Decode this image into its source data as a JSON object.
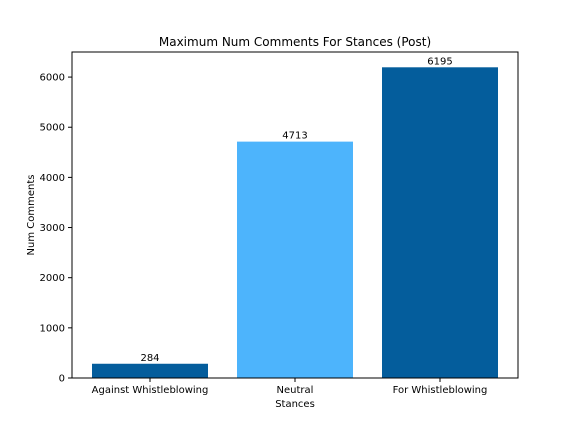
{
  "chart_data": {
    "type": "bar",
    "title": "Maximum Num Comments For Stances (Post)",
    "xlabel": "Stances",
    "ylabel": "Num Comments",
    "categories": [
      "Against Whistleblowing",
      "Neutral",
      "For Whistleblowing"
    ],
    "values": [
      284,
      4713,
      6195
    ],
    "data_labels": [
      "284",
      "4713",
      "6195"
    ],
    "bar_colors": [
      "#045d9c",
      "#4db4fc",
      "#045d9c"
    ],
    "ylim": [
      0,
      6500
    ],
    "yticks": [
      0,
      1000,
      2000,
      3000,
      4000,
      5000,
      6000
    ],
    "grid": false,
    "legend": "none"
  }
}
